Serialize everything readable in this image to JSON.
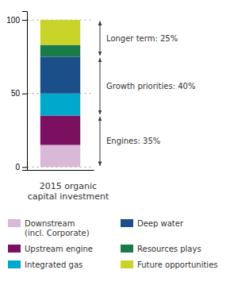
{
  "chart_data": {
    "type": "bar",
    "stacked": true,
    "title": "2015 organic\ncapital investment",
    "categories": [
      null
    ],
    "series": [
      {
        "name": "Downstream\n(incl. Corporate)",
        "color": "#d9b8d8",
        "values": [
          15
        ]
      },
      {
        "name": "Upstream engine",
        "color": "#7b1060",
        "values": [
          20
        ]
      },
      {
        "name": "Integrated gas",
        "color": "#00a8cc",
        "values": [
          15
        ]
      },
      {
        "name": "Deep water",
        "color": "#1a4f8a",
        "values": [
          25
        ]
      },
      {
        "name": "Resources plays",
        "color": "#1a7a4a",
        "values": [
          8
        ]
      },
      {
        "name": "Future opportunities",
        "color": "#c8d42a",
        "values": [
          17
        ]
      }
    ],
    "annotations": [
      {
        "label": "Engines: 35%",
        "from": 0,
        "to": 35
      },
      {
        "label": "Growth priorities: 40%",
        "from": 35,
        "to": 75
      },
      {
        "label": "Longer term: 25%",
        "from": 75,
        "to": 100
      }
    ],
    "ylim": [
      -2,
      106
    ],
    "yticks": [
      0,
      50,
      100
    ],
    "grid": true,
    "legend": "bottom"
  }
}
